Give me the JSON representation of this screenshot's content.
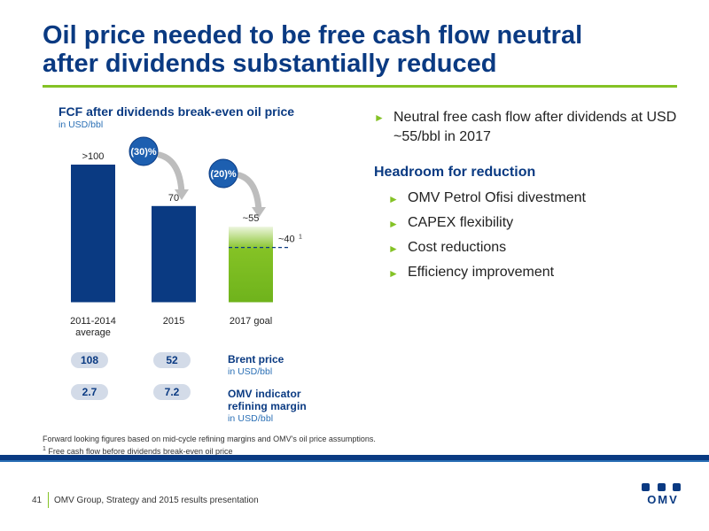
{
  "header": {
    "title_line1": "Oil price needed to be free cash flow neutral",
    "title_line2": "after dividends substantially reduced"
  },
  "chart": {
    "title": "FCF after dividends break-even oil price",
    "unit": "in USD/bbl"
  },
  "chart_data": {
    "type": "bar",
    "title": "FCF after dividends break-even oil price",
    "ylabel": "in USD/bbl",
    "categories": [
      "2011-2014 average",
      "2015",
      "2017 goal"
    ],
    "values": [
      100,
      70,
      55
    ],
    "value_labels": [
      ">100",
      "70",
      "~55"
    ],
    "category_lines": [
      [
        "2011-2014",
        "average"
      ],
      [
        "2015"
      ],
      [
        "2017 goal"
      ]
    ],
    "bar_colors": [
      "#0a3a82",
      "#0a3a82",
      "#84c225"
    ],
    "changes": [
      "(30)%",
      "(20)%"
    ],
    "reference_line": {
      "value": 40,
      "label": "~40",
      "superscript": "1"
    },
    "ylim": [
      0,
      100
    ],
    "grid": false
  },
  "metrics": {
    "brent": {
      "label": "Brent price",
      "unit": "in USD/bbl",
      "values": [
        "108",
        "52"
      ]
    },
    "omv": {
      "label": "OMV indicator refining margin",
      "unit": "in USD/bbl",
      "values": [
        "2.7",
        "7.2"
      ]
    }
  },
  "bullets": {
    "main": "Neutral free cash flow after dividends at USD ~55/bbl in 2017",
    "heading": "Headroom for reduction",
    "items": [
      "OMV Petrol Ofisi divestment",
      "CAPEX flexibility",
      "Cost reductions",
      "Efficiency improvement"
    ]
  },
  "footnotes": {
    "line1": "Forward looking figures based on mid-cycle refining margins and OMV's oil price assumptions.",
    "line2": "Free cash flow before dividends break-even oil price",
    "marker": "1"
  },
  "footer": {
    "page": "41",
    "text": "OMV Group, Strategy and 2015 results presentation"
  },
  "logo": {
    "text": "OMV"
  },
  "colors": {
    "brand_blue": "#0a3a82",
    "accent_green": "#84c225"
  }
}
